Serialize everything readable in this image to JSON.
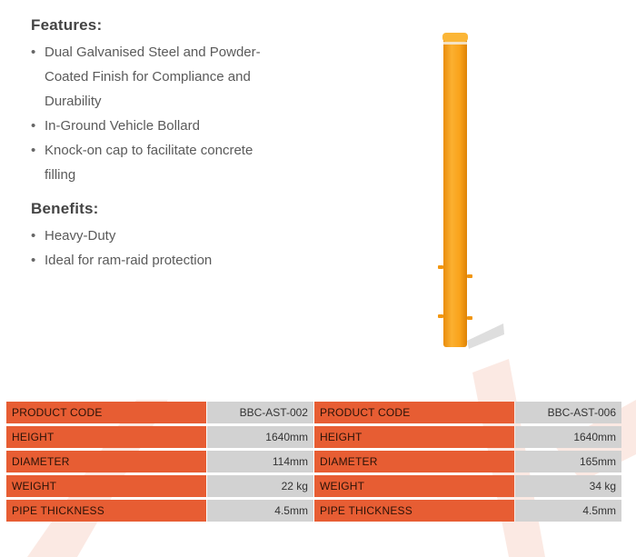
{
  "features": {
    "heading": "Features:",
    "items": [
      [
        "Dual Galvanised Steel and Powder-",
        "Coated Finish for Compliance and",
        "Durability"
      ],
      [
        "In-Ground Vehicle Bollard"
      ],
      [
        "Knock-on cap to facilitate concrete",
        "filling"
      ]
    ]
  },
  "benefits": {
    "heading": "Benefits:",
    "items": [
      "Heavy-Duty",
      "Ideal for ram-raid protection"
    ]
  },
  "product_image": {
    "icon": "bollard-icon",
    "color": "#f9a21a"
  },
  "specs": {
    "labels": [
      "PRODUCT CODE",
      "HEIGHT",
      "DIAMETER",
      "WEIGHT",
      "PIPE THICKNESS"
    ],
    "product_a": [
      "BBC-AST-002",
      "1640mm",
      "114mm",
      "22 kg",
      "4.5mm"
    ],
    "product_b": [
      "BBC-AST-006",
      "1640mm",
      "165mm",
      "34 kg",
      "4.5mm"
    ]
  },
  "colors": {
    "label_bg": "#e75d33",
    "value_bg": "#d2d2d2",
    "bollard": "#f9a21a"
  }
}
